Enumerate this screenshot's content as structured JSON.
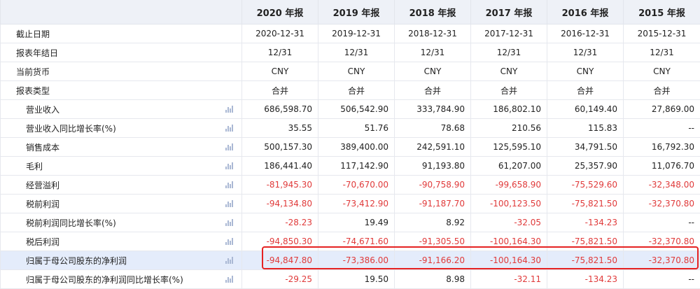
{
  "header": {
    "years": [
      "2020 年报",
      "2019 年报",
      "2018 年报",
      "2017 年报",
      "2016 年报",
      "2015 年报"
    ]
  },
  "rows": [
    {
      "label": "截止日期",
      "sub": false,
      "chart": false,
      "align": "center",
      "values": [
        "2020-12-31",
        "2019-12-31",
        "2018-12-31",
        "2017-12-31",
        "2016-12-31",
        "2015-12-31"
      ],
      "negative": [
        false,
        false,
        false,
        false,
        false,
        false
      ]
    },
    {
      "label": "报表年结日",
      "sub": false,
      "chart": false,
      "align": "center",
      "values": [
        "12/31",
        "12/31",
        "12/31",
        "12/31",
        "12/31",
        "12/31"
      ],
      "negative": [
        false,
        false,
        false,
        false,
        false,
        false
      ]
    },
    {
      "label": "当前货币",
      "sub": false,
      "chart": false,
      "align": "center",
      "values": [
        "CNY",
        "CNY",
        "CNY",
        "CNY",
        "CNY",
        "CNY"
      ],
      "negative": [
        false,
        false,
        false,
        false,
        false,
        false
      ]
    },
    {
      "label": "报表类型",
      "sub": false,
      "chart": false,
      "align": "center",
      "values": [
        "合并",
        "合并",
        "合并",
        "合并",
        "合并",
        "合并"
      ],
      "negative": [
        false,
        false,
        false,
        false,
        false,
        false
      ]
    },
    {
      "label": "营业收入",
      "sub": true,
      "chart": true,
      "align": "right",
      "values": [
        "686,598.70",
        "506,542.90",
        "333,784.90",
        "186,802.10",
        "60,149.40",
        "27,869.00"
      ],
      "negative": [
        false,
        false,
        false,
        false,
        false,
        false
      ]
    },
    {
      "label": "营业收入同比增长率(%)",
      "sub": true,
      "chart": true,
      "align": "right",
      "values": [
        "35.55",
        "51.76",
        "78.68",
        "210.56",
        "115.83",
        "--"
      ],
      "negative": [
        false,
        false,
        false,
        false,
        false,
        false
      ]
    },
    {
      "label": "销售成本",
      "sub": true,
      "chart": true,
      "align": "right",
      "values": [
        "500,157.30",
        "389,400.00",
        "242,591.10",
        "125,595.10",
        "34,791.50",
        "16,792.30"
      ],
      "negative": [
        false,
        false,
        false,
        false,
        false,
        false
      ]
    },
    {
      "label": "毛利",
      "sub": true,
      "chart": true,
      "align": "right",
      "values": [
        "186,441.40",
        "117,142.90",
        "91,193.80",
        "61,207.00",
        "25,357.90",
        "11,076.70"
      ],
      "negative": [
        false,
        false,
        false,
        false,
        false,
        false
      ]
    },
    {
      "label": "经营溢利",
      "sub": true,
      "chart": true,
      "align": "right",
      "values": [
        "-81,945.30",
        "-70,670.00",
        "-90,758.90",
        "-99,658.90",
        "-75,529.60",
        "-32,348.00"
      ],
      "negative": [
        true,
        true,
        true,
        true,
        true,
        true
      ]
    },
    {
      "label": "税前利润",
      "sub": true,
      "chart": true,
      "align": "right",
      "values": [
        "-94,134.80",
        "-73,412.90",
        "-91,187.70",
        "-100,123.50",
        "-75,821.50",
        "-32,370.80"
      ],
      "negative": [
        true,
        true,
        true,
        true,
        true,
        true
      ]
    },
    {
      "label": "税前利润同比增长率(%)",
      "sub": true,
      "chart": true,
      "align": "right",
      "values": [
        "-28.23",
        "19.49",
        "8.92",
        "-32.05",
        "-134.23",
        "--"
      ],
      "negative": [
        true,
        false,
        false,
        true,
        true,
        false
      ]
    },
    {
      "label": "税后利润",
      "sub": true,
      "chart": true,
      "align": "right",
      "values": [
        "-94,850.30",
        "-74,671.60",
        "-91,305.50",
        "-100,164.30",
        "-75,821.50",
        "-32,370.80"
      ],
      "negative": [
        true,
        true,
        true,
        true,
        true,
        true
      ]
    },
    {
      "label": "归属于母公司股东的净利润",
      "sub": true,
      "chart": true,
      "align": "right",
      "highlight": true,
      "values": [
        "-94,847.80",
        "-73,386.00",
        "-91,166.20",
        "-100,164.30",
        "-75,821.50",
        "-32,370.80"
      ],
      "negative": [
        true,
        true,
        true,
        true,
        true,
        true
      ]
    },
    {
      "label": "归属于母公司股东的净利润同比增长率(%)",
      "sub": true,
      "chart": true,
      "align": "right",
      "values": [
        "-29.25",
        "19.50",
        "8.98",
        "-32.11",
        "-134.23",
        "--"
      ],
      "negative": [
        true,
        false,
        false,
        true,
        true,
        false
      ]
    }
  ],
  "icons": {
    "chart": "bar-chart-icon"
  },
  "colors": {
    "negative": "#e03a3a",
    "header_bg": "#eef1f7",
    "highlight_bg": "#e4ecfb",
    "highlight_border": "#e52222"
  }
}
